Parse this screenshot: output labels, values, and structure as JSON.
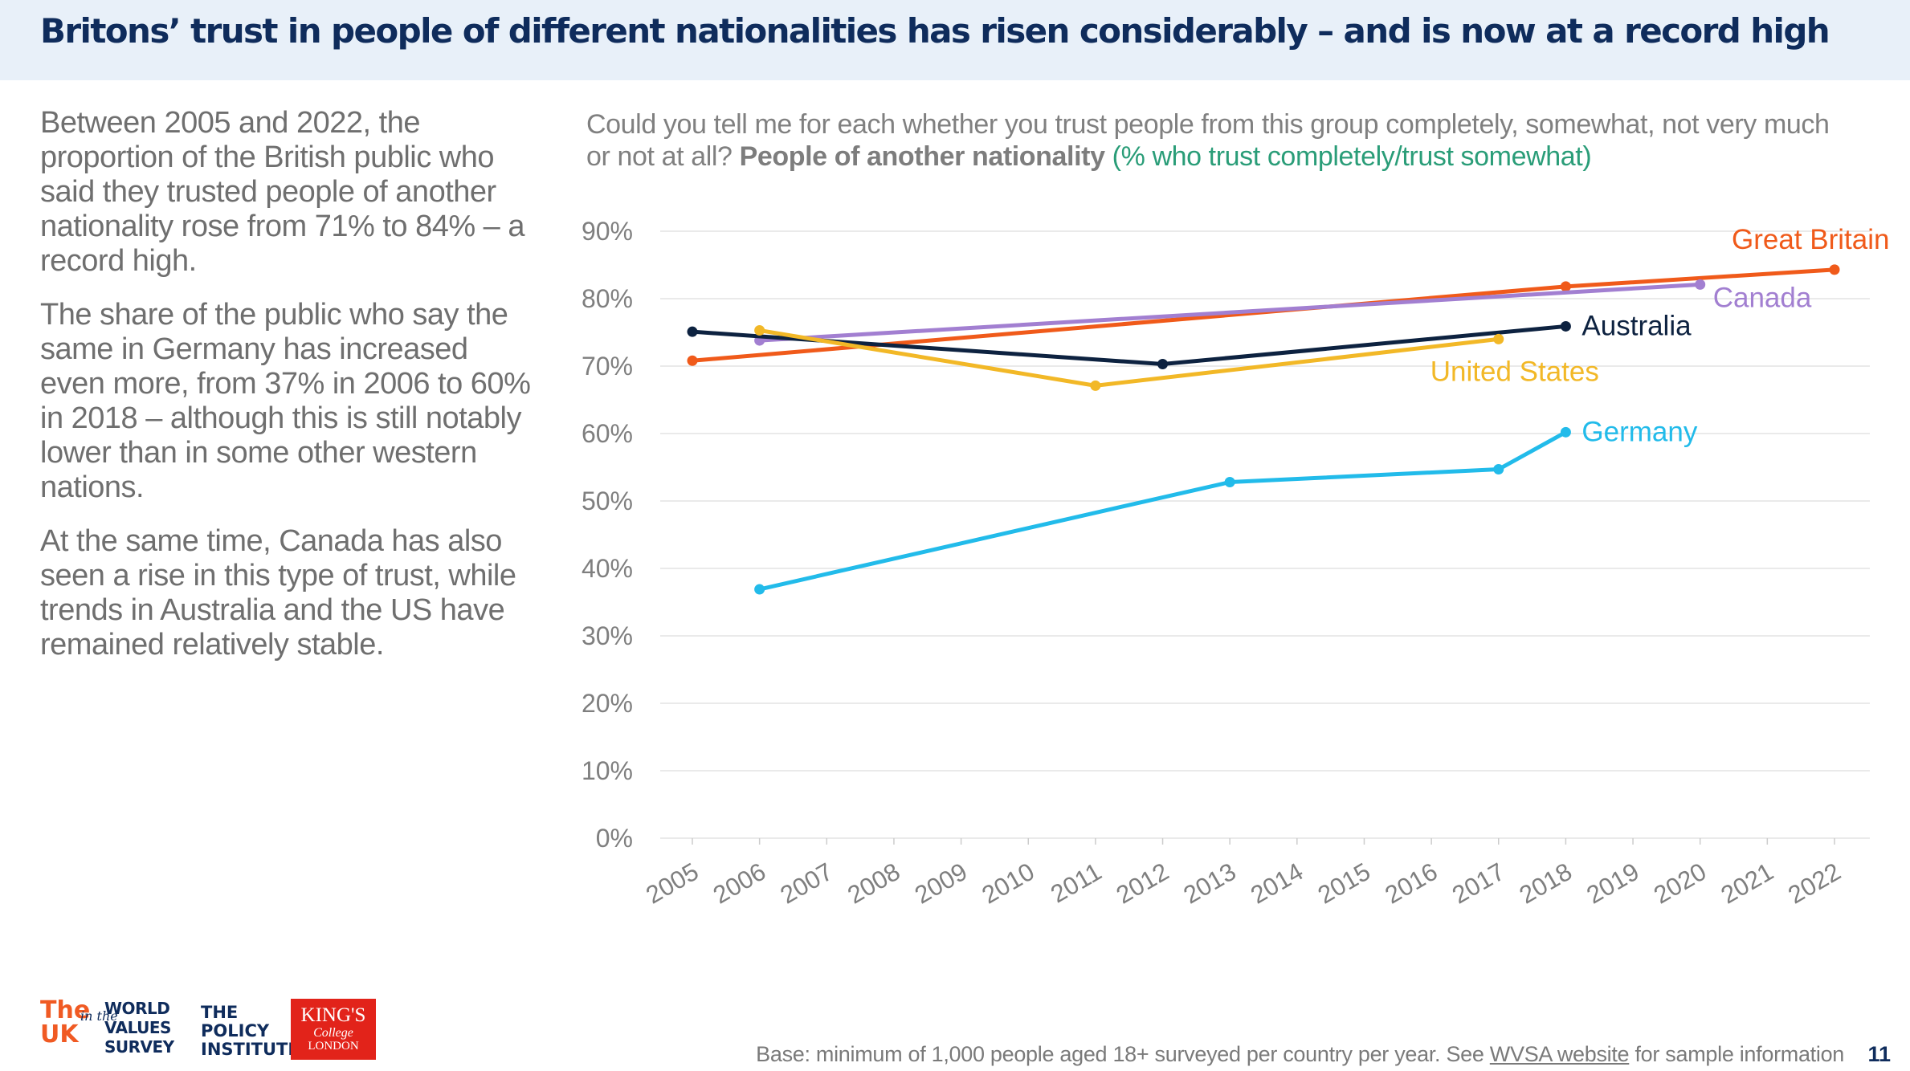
{
  "header": {
    "title": "Britons’ trust in people of different nationalities has risen considerably – and is now at a record high"
  },
  "narrative": [
    "Between 2005 and 2022, the proportion of the British public who said they trusted people of another nationality rose from 71% to 84% – a record high.",
    "The share of the public who say the same in Germany has increased even more, from 37% in 2006 to 60% in 2018 – although this is still notably lower than in some other western nations.",
    "At the same time, Canada has also seen a rise in this type of trust, while trends in Australia and the US have remained relatively stable."
  ],
  "question": {
    "text": "Could you tell me for each whether you trust people from this group completely, somewhat, not very much or not at all?",
    "group": "People of another nationality",
    "measure": "(% who trust completely/trust somewhat)"
  },
  "chart_data": {
    "type": "line",
    "x": [
      2005,
      2006,
      2007,
      2008,
      2009,
      2010,
      2011,
      2012,
      2013,
      2014,
      2015,
      2016,
      2017,
      2018,
      2019,
      2020,
      2021,
      2022
    ],
    "xlabels": [
      "2005",
      "2006",
      "2007",
      "2008",
      "2009",
      "2010",
      "2011",
      "2012",
      "2013",
      "2014",
      "2015",
      "2016",
      "2017",
      "2018",
      "2019",
      "2020",
      "2021",
      "2022"
    ],
    "ylim": [
      0,
      90
    ],
    "yticks": [
      0,
      10,
      20,
      30,
      40,
      50,
      60,
      70,
      80,
      90
    ],
    "yticklabels": [
      "0%",
      "10%",
      "20%",
      "30%",
      "40%",
      "50%",
      "60%",
      "70%",
      "80%",
      "90%"
    ],
    "grid": true,
    "series": [
      {
        "name": "Great Britain",
        "color": "#f05a1a",
        "points": [
          [
            2005,
            70.8
          ],
          [
            2018,
            81.8
          ],
          [
            2022,
            84.3
          ]
        ]
      },
      {
        "name": "Canada",
        "color": "#a27fd1",
        "points": [
          [
            2006,
            73.8
          ],
          [
            2020,
            82.1
          ]
        ]
      },
      {
        "name": "Australia",
        "color": "#0d2240",
        "points": [
          [
            2005,
            75.1
          ],
          [
            2012,
            70.3
          ],
          [
            2018,
            75.9
          ]
        ]
      },
      {
        "name": "United States",
        "color": "#f2b827",
        "points": [
          [
            2006,
            75.3
          ],
          [
            2011,
            67.1
          ],
          [
            2017,
            74.0
          ]
        ]
      },
      {
        "name": "Germany",
        "color": "#22bbea",
        "points": [
          [
            2006,
            36.9
          ],
          [
            2013,
            52.8
          ],
          [
            2017,
            54.7
          ],
          [
            2018,
            60.2
          ]
        ]
      }
    ]
  },
  "footer": {
    "base_prefix": "Base: minimum of 1,000 people aged 18+ surveyed per country per year. See ",
    "base_link": "WVSA website",
    "base_suffix": " for sample information",
    "page_number": "11"
  },
  "logos": {
    "uk_the": "The",
    "uk_uk": "UK",
    "uk_in_the": "in the",
    "wvs": [
      "WORLD",
      "VALUES",
      "SURVEY"
    ],
    "policy": [
      "THE",
      "POLICY",
      "INSTITUTE"
    ],
    "kings": [
      "KING'S",
      "College",
      "LONDON"
    ]
  }
}
